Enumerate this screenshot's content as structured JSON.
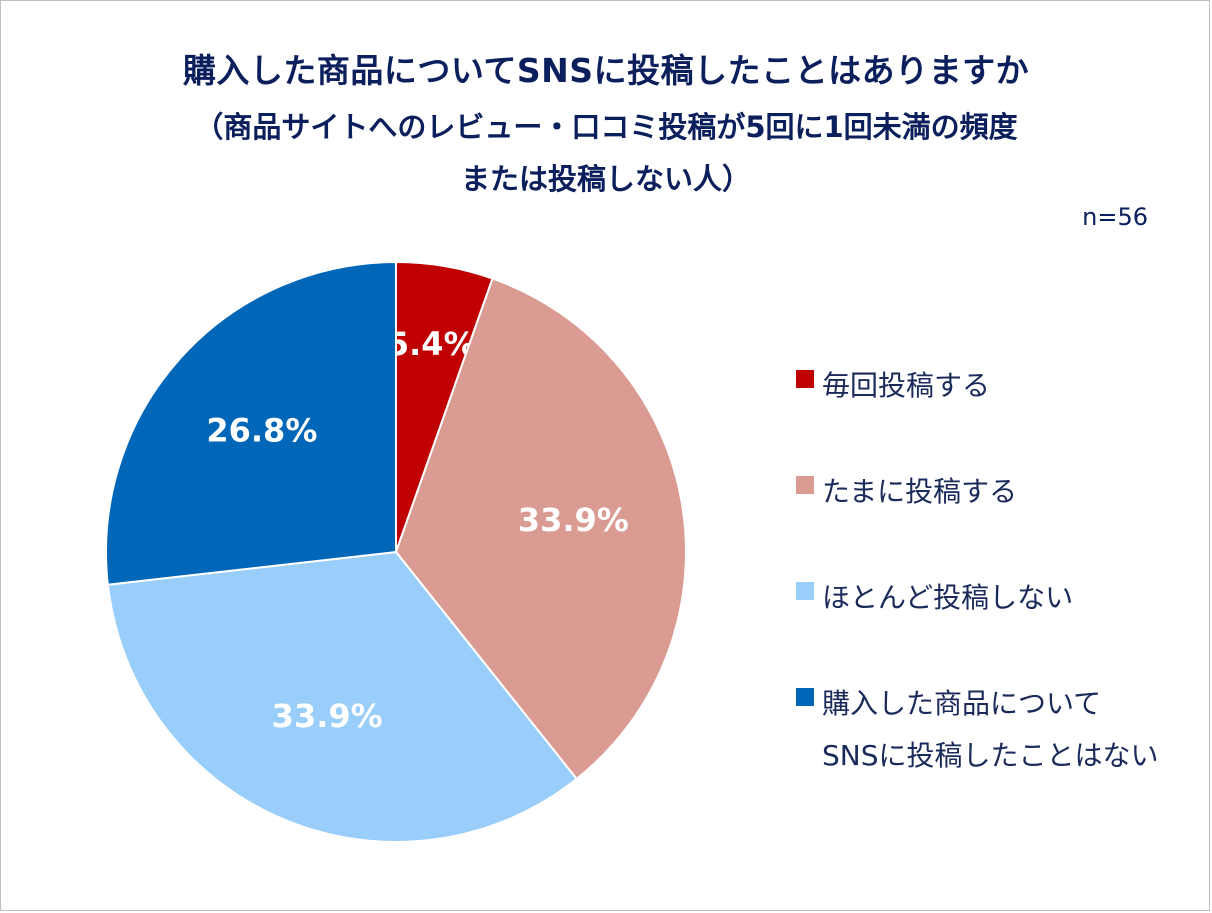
{
  "chart_data": {
    "type": "pie",
    "title": "購入した商品についてSNSに投稿したことはありますか",
    "subtitle_line1": "（商品サイトへのレビュー・口コミ投稿が5回に1回未満の頻度",
    "subtitle_line2": "または投稿しない人）",
    "sample_size": "n=56",
    "legend_position": "right",
    "slices": [
      {
        "label": "毎回投稿する",
        "value": 5.4,
        "display": "5.4%",
        "color": "#c00000"
      },
      {
        "label": "たまに投稿する",
        "value": 33.9,
        "display": "33.9%",
        "color": "#da9b93"
      },
      {
        "label": "ほとんど投稿しない",
        "value": 33.9,
        "display": "33.9%",
        "color": "#99cdfa"
      },
      {
        "label": "購入した商品について\nSNSに投稿したことはない",
        "value": 26.8,
        "display": "26.8%",
        "color": "#0066b8"
      }
    ]
  }
}
